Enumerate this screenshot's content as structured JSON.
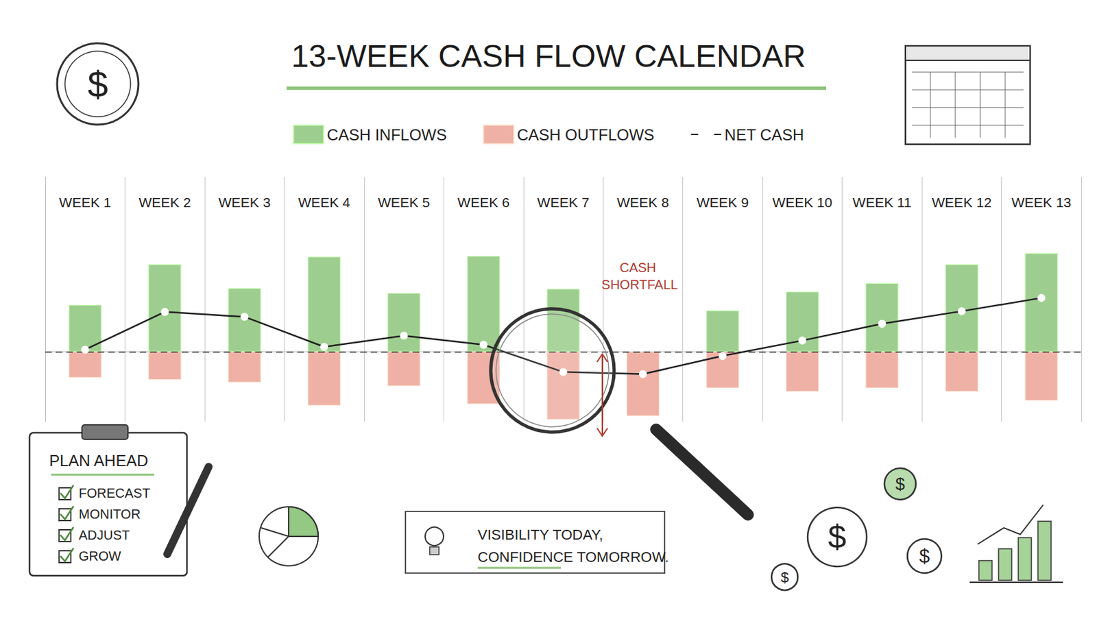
{
  "chart_data": {
    "type": "bar",
    "title": "13-WEEK CASH FLOW CALENDAR",
    "categories": [
      "WEEK 1",
      "WEEK 2",
      "WEEK 3",
      "WEEK 4",
      "WEEK 5",
      "WEEK 6",
      "WEEK 7",
      "WEEK 8",
      "WEEK 9",
      "WEEK 10",
      "WEEK 11",
      "WEEK 12",
      "WEEK 13"
    ],
    "series": [
      {
        "name": "CASH INFLOWS",
        "type": "bar",
        "color": "#93c983",
        "values": [
          67,
          125,
          91,
          136,
          84,
          137,
          90,
          null,
          59,
          86,
          98,
          125,
          141
        ]
      },
      {
        "name": "CASH OUTFLOWS",
        "type": "bar",
        "color": "#eda99b",
        "values": [
          -37,
          -40,
          -44,
          -77,
          -49,
          -75,
          -97,
          -92,
          -52,
          -57,
          -52,
          -57,
          -70
        ]
      },
      {
        "name": "NET CASH",
        "type": "line",
        "color": "#222222",
        "marker": "circle",
        "values": [
          3,
          57,
          50,
          7,
          23,
          10,
          -29,
          -32,
          -6,
          16,
          40,
          58,
          77
        ]
      }
    ],
    "ylim": [
      -100,
      250
    ],
    "yticks": [
      0
    ],
    "tick_labels": "x",
    "grid": true,
    "legend": "top",
    "annotations": {
      "shortfall": "CASH SHORTFALL",
      "checklist_title": "PLAN AHEAD",
      "checklist": [
        "FORECAST",
        "MONITOR",
        "ADJUST",
        "GROW"
      ],
      "tagline": [
        "VISIBILITY TODAY,",
        "CONFIDENCE TOMORROW."
      ],
      "coin": "$"
    }
  }
}
